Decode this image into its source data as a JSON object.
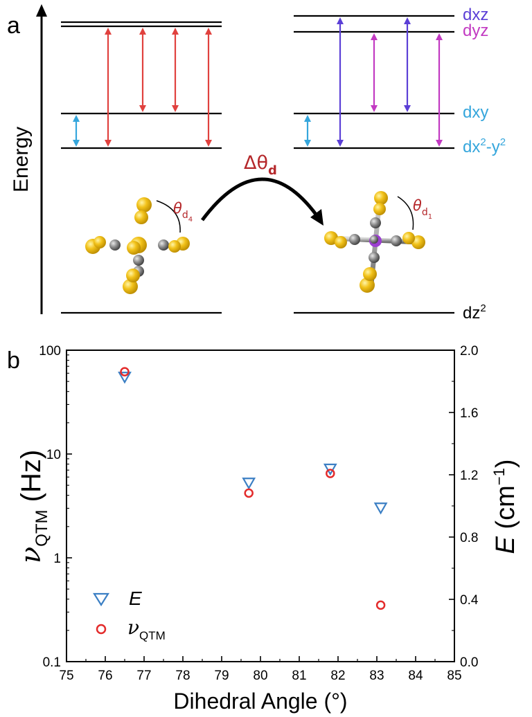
{
  "panel_a": {
    "panel_label": "a",
    "y_axis_label": "Energy",
    "delta_label": "Δθ",
    "delta_sub": "d",
    "theta_left": "θ",
    "theta_left_sub": "d",
    "theta_left_subsub": "4",
    "theta_right": "θ",
    "theta_right_sub": "d",
    "theta_right_subsub": "1",
    "orbitals": [
      {
        "name": "dxz",
        "color": "#5b3fd6"
      },
      {
        "name": "dyz",
        "color": "#c23ac2"
      },
      {
        "name": "dxy",
        "color": "#35a6dc"
      },
      {
        "name": "dx²-y²",
        "base": "dx",
        "sup1": "2",
        "mid": "-y",
        "sup2": "2",
        "color": "#35a6dc"
      },
      {
        "name": "dz²",
        "base": "dz",
        "sup": "2",
        "color": "#000000"
      }
    ],
    "colors": {
      "red": "#e0413e",
      "blue": "#5b3fd6",
      "magenta": "#c23ac2",
      "cyan": "#35a6dc",
      "gold": "#f2c21a"
    }
  },
  "panel_b": {
    "panel_label": "b",
    "legend": {
      "e_label": "E",
      "nu_label": "ν",
      "nu_sub": "QTM"
    },
    "y_left_label": "ν",
    "y_left_sub": "QTM",
    "y_left_unit": " (Hz)",
    "y_right_label": "E",
    "y_right_unit": " (cm",
    "y_right_sup": "−1",
    "y_right_close": ")",
    "x_label": "Dihedral Angle (°)"
  },
  "chart_data": {
    "type": "scatter",
    "xlabel": "Dihedral Angle (°)",
    "xlim": [
      75,
      85
    ],
    "x_ticks": [
      "75",
      "76",
      "77",
      "78",
      "79",
      "80",
      "81",
      "82",
      "83",
      "84",
      "85"
    ],
    "y_left": {
      "label": "νQTM (Hz)",
      "scale": "log",
      "lim": [
        0.1,
        100
      ],
      "ticks": [
        "0.1",
        "1",
        "10",
        "100"
      ]
    },
    "y_right": {
      "label": "E (cm−1)",
      "scale": "linear",
      "lim": [
        0.0,
        2.0
      ],
      "ticks": [
        "0.0",
        "0.4",
        "0.8",
        "1.2",
        "1.6",
        "2.0"
      ]
    },
    "series": [
      {
        "name": "E",
        "axis": "right",
        "marker": "triangle-down",
        "color": "#3b7fc4",
        "x": [
          76.5,
          79.7,
          81.8,
          83.1
        ],
        "y": [
          1.83,
          1.15,
          1.24,
          0.99
        ]
      },
      {
        "name": "νQTM",
        "axis": "left",
        "marker": "circle",
        "color": "#e32b2b",
        "x": [
          76.5,
          79.7,
          81.8,
          83.1
        ],
        "y": [
          62,
          4.2,
          6.5,
          0.35
        ]
      }
    ],
    "legend_position": "bottom-left"
  }
}
